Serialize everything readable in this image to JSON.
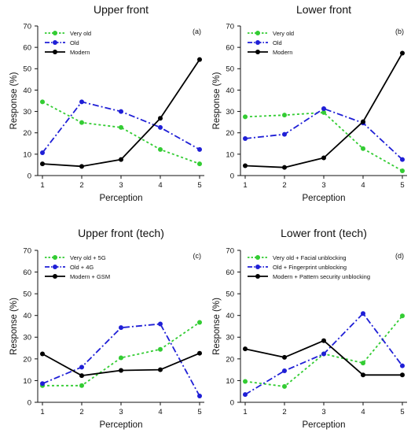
{
  "figure": {
    "colors": {
      "very_old": "#33cc33",
      "old": "#1f1fd6",
      "modern": "#000000"
    }
  },
  "chart_data": [
    {
      "type": "line",
      "title": "Upper front",
      "panel_tag": "(a)",
      "xlabel": "Perception",
      "ylabel": "Response (%)",
      "x": [
        1,
        2,
        3,
        4,
        5
      ],
      "xlim": [
        1,
        5
      ],
      "ylim": [
        0,
        70
      ],
      "yticks": [
        0,
        10,
        20,
        30,
        40,
        50,
        60,
        70
      ],
      "legend_position": "top-left",
      "series": [
        {
          "name": "Very old",
          "color": "#33cc33",
          "style": "dotted",
          "values": [
            34.5,
            24.8,
            22.5,
            12.2,
            5.5
          ]
        },
        {
          "name": "Old",
          "color": "#1f1fd6",
          "style": "dashdot",
          "values": [
            10.7,
            34.5,
            30.0,
            22.5,
            12.2
          ]
        },
        {
          "name": "Modern",
          "color": "#000000",
          "style": "solid",
          "values": [
            5.5,
            4.3,
            7.5,
            26.8,
            54.3
          ]
        }
      ]
    },
    {
      "type": "line",
      "title": "Lower front",
      "panel_tag": "(b)",
      "xlabel": "Perception",
      "ylabel": "Response (%)",
      "x": [
        1,
        2,
        3,
        4,
        5
      ],
      "xlim": [
        1,
        5
      ],
      "ylim": [
        0,
        70
      ],
      "yticks": [
        0,
        10,
        20,
        30,
        40,
        50,
        60,
        70
      ],
      "legend_position": "top-left",
      "series": [
        {
          "name": "Very old",
          "color": "#33cc33",
          "style": "dotted",
          "values": [
            27.5,
            28.3,
            29.5,
            12.6,
            2.2
          ]
        },
        {
          "name": "Old",
          "color": "#1f1fd6",
          "style": "dashdot",
          "values": [
            17.3,
            19.3,
            31.3,
            24.6,
            7.5
          ]
        },
        {
          "name": "Modern",
          "color": "#000000",
          "style": "solid",
          "values": [
            4.6,
            3.8,
            8.3,
            25.2,
            57.3
          ]
        }
      ]
    },
    {
      "type": "line",
      "title": "Upper front (tech)",
      "panel_tag": "(c)",
      "xlabel": "Perception",
      "ylabel": "Response (%)",
      "x": [
        1,
        2,
        3,
        4,
        5
      ],
      "xlim": [
        1,
        5
      ],
      "ylim": [
        0,
        70
      ],
      "yticks": [
        0,
        10,
        20,
        30,
        40,
        50,
        60,
        70
      ],
      "legend_position": "top-left",
      "series": [
        {
          "name": "Very old + 5G",
          "color": "#33cc33",
          "style": "dotted",
          "values": [
            7.7,
            7.7,
            20.5,
            24.4,
            36.8
          ]
        },
        {
          "name": "Old + 4G",
          "color": "#1f1fd6",
          "style": "dashdot",
          "values": [
            8.6,
            16.2,
            34.4,
            36.1,
            2.9
          ]
        },
        {
          "name": "Modern + GSM",
          "color": "#000000",
          "style": "solid",
          "values": [
            22.3,
            12.3,
            14.7,
            15.0,
            22.6
          ]
        }
      ]
    },
    {
      "type": "line",
      "title": "Lower front (tech)",
      "panel_tag": "(d)",
      "xlabel": "Perception",
      "ylabel": "Response (%)",
      "x": [
        1,
        2,
        3,
        4,
        5
      ],
      "xlim": [
        1,
        5
      ],
      "ylim": [
        0,
        70
      ],
      "yticks": [
        0,
        10,
        20,
        30,
        40,
        50,
        60,
        70
      ],
      "legend_position": "top-left",
      "series": [
        {
          "name": "Very old + Facial unblocking",
          "color": "#33cc33",
          "style": "dotted",
          "values": [
            9.6,
            7.3,
            22.3,
            18.1,
            39.8
          ]
        },
        {
          "name": "Old + Fingerprint unblocking",
          "color": "#1f1fd6",
          "style": "dashdot",
          "values": [
            3.6,
            14.5,
            22.3,
            40.9,
            16.8
          ]
        },
        {
          "name": "Modern + Pattern security unblocking",
          "color": "#000000",
          "style": "solid",
          "values": [
            24.6,
            20.7,
            28.4,
            12.6,
            12.6
          ]
        }
      ]
    }
  ]
}
